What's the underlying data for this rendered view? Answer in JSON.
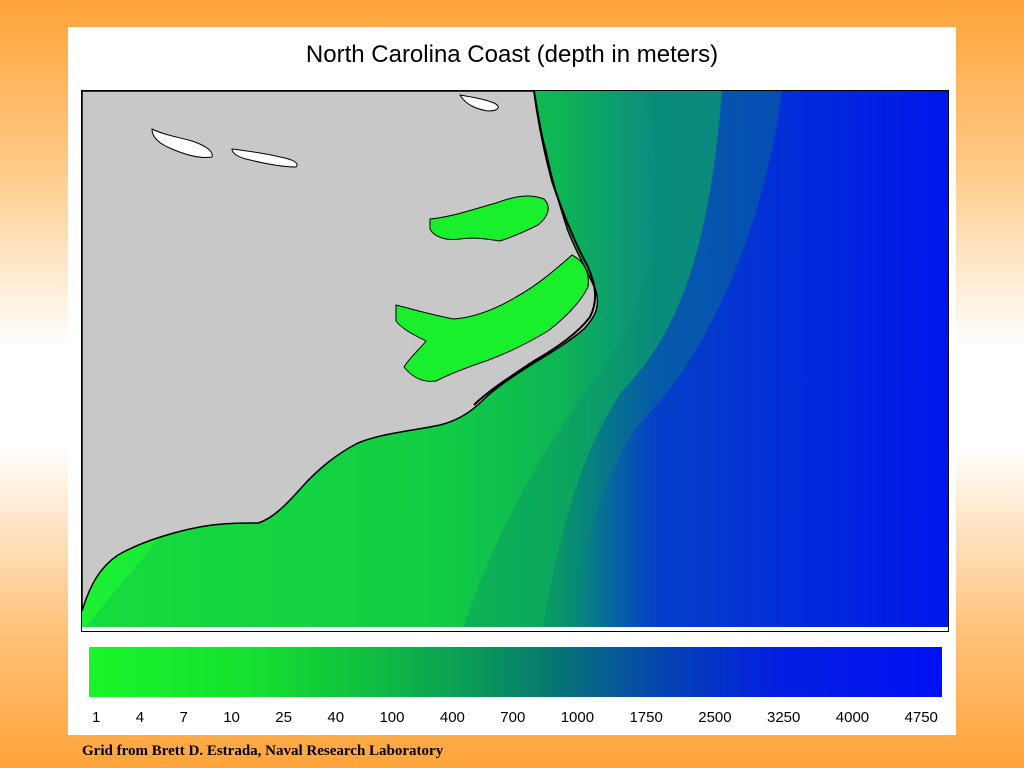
{
  "title": "North Carolina Coast (depth in meters)",
  "legend": {
    "ticks": [
      "1",
      "4",
      "7",
      "10",
      "25",
      "40",
      "100",
      "400",
      "700",
      "1000",
      "1750",
      "2500",
      "3250",
      "4000",
      "4750"
    ],
    "color_low": "#19f52a",
    "color_high": "#0010f4"
  },
  "colors": {
    "land": "#c8c8c8",
    "shallow": "#19f52a",
    "deep": "#0010f4",
    "frame": "#f99e2e"
  },
  "credit": "Grid from Brett D. Estrada, Naval Research Laboratory"
}
